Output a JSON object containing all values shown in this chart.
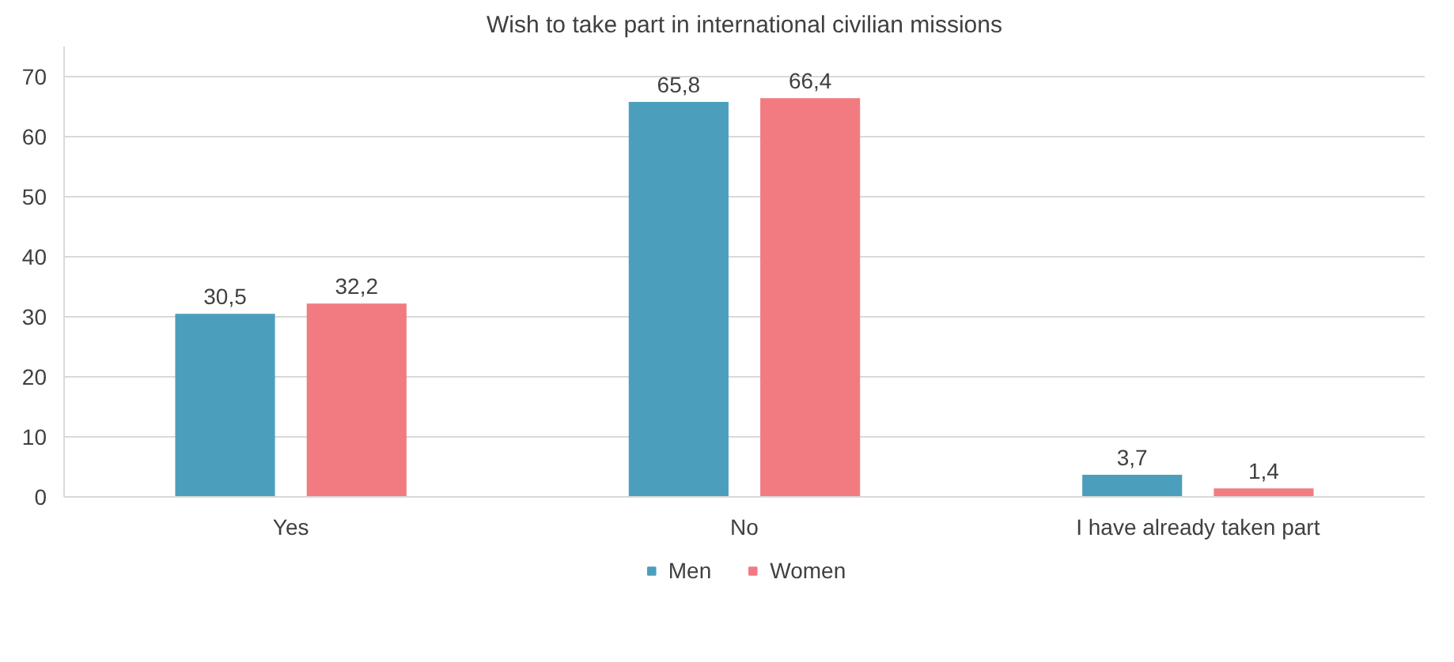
{
  "chart_data": {
    "type": "bar",
    "title": "Wish to take part in international civilian missions",
    "categories": [
      "Yes",
      "No",
      "I have already taken part"
    ],
    "series": [
      {
        "name": "Men",
        "color": "#4b9fbd",
        "values": [
          30.5,
          65.8,
          3.7
        ],
        "value_labels": [
          "30,5",
          "65,8",
          "3,7"
        ]
      },
      {
        "name": "Women",
        "color": "#f27b82",
        "values": [
          32.2,
          66.4,
          1.4
        ],
        "value_labels": [
          "32,2",
          "66,4",
          "1,4"
        ]
      }
    ],
    "ylim": [
      0,
      75
    ],
    "yticks": [
      0,
      10,
      20,
      30,
      40,
      50,
      60,
      70
    ],
    "grid": "y",
    "legend": "bottom"
  }
}
